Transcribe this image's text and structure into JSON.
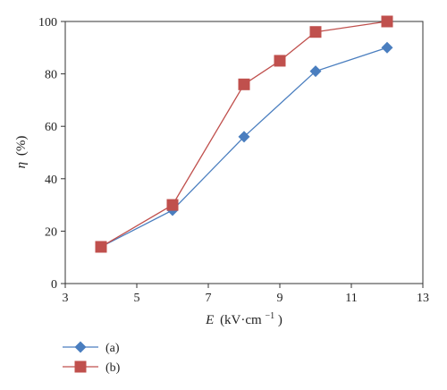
{
  "chart_data": {
    "type": "line",
    "xlabel": {
      "var": "E",
      "unit": "(kV·cm",
      "exp": "−1",
      "close": ")"
    },
    "ylabel": {
      "var": "η",
      "unit": "(%)"
    },
    "xlim": [
      3,
      13
    ],
    "ylim": [
      0,
      100
    ],
    "xticks": [
      "3",
      "5",
      "7",
      "9",
      "11",
      "13"
    ],
    "yticks": [
      "0",
      "20",
      "40",
      "60",
      "80",
      "100"
    ],
    "grid": false,
    "legend_position": "bottom-left",
    "series": [
      {
        "name": "(a)",
        "color": "#4a7ebf",
        "marker": "diamond",
        "x": [
          4,
          6,
          8,
          10,
          12
        ],
        "y": [
          14,
          28,
          56,
          81,
          90
        ]
      },
      {
        "name": "(b)",
        "color": "#c0504d",
        "marker": "square",
        "x": [
          4,
          6,
          8,
          9,
          10,
          12
        ],
        "y": [
          14,
          30,
          76,
          85,
          96,
          100
        ]
      }
    ]
  }
}
